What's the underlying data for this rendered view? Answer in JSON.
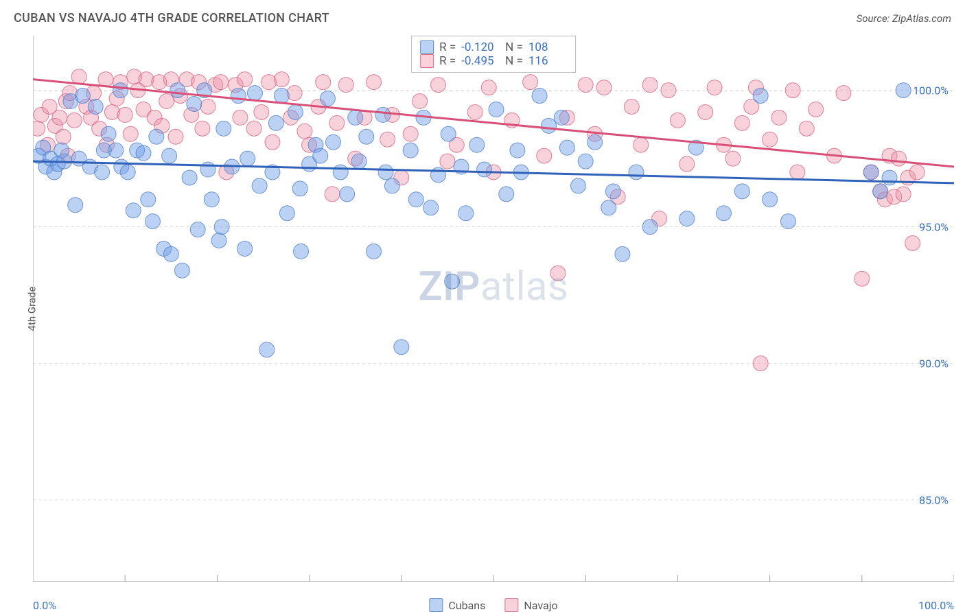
{
  "title": "CUBAN VS NAVAJO 4TH GRADE CORRELATION CHART",
  "source": "Source: ZipAtlas.com",
  "ylabel": "4th Grade",
  "watermark": {
    "prefix": "ZIP",
    "suffix": "atlas"
  },
  "chart": {
    "type": "scatter",
    "background_color": "#ffffff",
    "grid_color": "#d8d8d8",
    "axis_line_color": "#999999",
    "tick_color": "#a0a0a0",
    "xlim": [
      0,
      100
    ],
    "ylim": [
      82,
      102
    ],
    "xticks_minor_step": 10,
    "xtick_labels": {
      "min": "0.0%",
      "max": "100.0%"
    },
    "ytick_values": [
      85,
      90,
      95,
      100
    ],
    "ytick_labels": [
      "85.0%",
      "90.0%",
      "95.0%",
      "100.0%"
    ],
    "marker_radius": 11,
    "marker_opacity": 0.55,
    "line_width": 3,
    "label_fontsize": 16,
    "label_color": "#3b72c4"
  },
  "series": {
    "cubans": {
      "label": "Cubans",
      "color": "#6a9be8",
      "fill": "rgba(106,155,232,0.45)",
      "stroke": "rgba(83,128,200,0.8)",
      "trend_color": "#2f62b8",
      "R": "-0.120",
      "N": "108",
      "trend": {
        "y_at_x0": 97.4,
        "y_at_x100": 96.6
      },
      "points": [
        [
          0.6,
          97.6
        ],
        [
          1.1,
          97.9
        ],
        [
          1.4,
          97.2
        ],
        [
          1.9,
          97.5
        ],
        [
          2.3,
          97.0
        ],
        [
          2.7,
          97.3
        ],
        [
          3.1,
          97.8
        ],
        [
          3.4,
          97.4
        ],
        [
          4.1,
          99.6
        ],
        [
          4.6,
          95.8
        ],
        [
          5.0,
          97.5
        ],
        [
          5.4,
          99.8
        ],
        [
          6.2,
          97.2
        ],
        [
          6.8,
          99.4
        ],
        [
          7.5,
          97.0
        ],
        [
          7.7,
          97.8
        ],
        [
          8.2,
          98.4
        ],
        [
          9.0,
          97.8
        ],
        [
          9.6,
          97.2
        ],
        [
          10.3,
          97.0
        ],
        [
          9.5,
          100.0
        ],
        [
          10.9,
          95.6
        ],
        [
          11.3,
          97.8
        ],
        [
          12.0,
          97.7
        ],
        [
          12.5,
          96.0
        ],
        [
          13.0,
          95.2
        ],
        [
          13.4,
          98.3
        ],
        [
          14.2,
          94.2
        ],
        [
          14.8,
          97.6
        ],
        [
          15.0,
          94.0
        ],
        [
          15.7,
          100.0
        ],
        [
          16.2,
          93.4
        ],
        [
          17.0,
          96.8
        ],
        [
          17.5,
          99.5
        ],
        [
          17.9,
          94.9
        ],
        [
          18.6,
          100.0
        ],
        [
          19.0,
          97.1
        ],
        [
          19.4,
          96.0
        ],
        [
          20.2,
          94.5
        ],
        [
          20.7,
          98.6
        ],
        [
          20.5,
          95.0
        ],
        [
          21.6,
          97.2
        ],
        [
          22.3,
          99.8
        ],
        [
          23.0,
          94.2
        ],
        [
          23.3,
          97.5
        ],
        [
          24.1,
          99.9
        ],
        [
          24.6,
          96.5
        ],
        [
          25.4,
          90.5
        ],
        [
          26.0,
          97.0
        ],
        [
          26.4,
          98.8
        ],
        [
          27.0,
          99.8
        ],
        [
          27.6,
          95.5
        ],
        [
          28.5,
          99.2
        ],
        [
          29.0,
          96.4
        ],
        [
          29.1,
          94.1
        ],
        [
          30.0,
          97.3
        ],
        [
          30.7,
          98.0
        ],
        [
          31.2,
          97.6
        ],
        [
          32.0,
          99.7
        ],
        [
          32.6,
          98.1
        ],
        [
          33.4,
          97.0
        ],
        [
          34.1,
          96.2
        ],
        [
          35.0,
          99.0
        ],
        [
          35.4,
          97.4
        ],
        [
          36.2,
          98.3
        ],
        [
          37.0,
          94.1
        ],
        [
          38.0,
          99.1
        ],
        [
          38.3,
          97.0
        ],
        [
          39.0,
          96.5
        ],
        [
          40.0,
          90.6
        ],
        [
          41.0,
          97.8
        ],
        [
          41.6,
          96.0
        ],
        [
          42.4,
          99.0
        ],
        [
          43.2,
          95.7
        ],
        [
          44.0,
          96.9
        ],
        [
          45.1,
          98.4
        ],
        [
          45.5,
          93.0
        ],
        [
          46.5,
          97.2
        ],
        [
          47.0,
          95.5
        ],
        [
          48.2,
          98.0
        ],
        [
          49.0,
          97.1
        ],
        [
          50.3,
          99.3
        ],
        [
          51.4,
          96.2
        ],
        [
          52.6,
          97.8
        ],
        [
          53.0,
          97.0
        ],
        [
          55.0,
          99.8
        ],
        [
          56.0,
          98.7
        ],
        [
          57.4,
          99.0
        ],
        [
          58.0,
          97.9
        ],
        [
          59.2,
          96.5
        ],
        [
          60.0,
          97.4
        ],
        [
          61.0,
          98.1
        ],
        [
          62.5,
          95.7
        ],
        [
          63.0,
          96.3
        ],
        [
          64.0,
          94.0
        ],
        [
          65.5,
          97.0
        ],
        [
          67.0,
          95.0
        ],
        [
          71.0,
          95.3
        ],
        [
          72.0,
          97.9
        ],
        [
          75.0,
          95.5
        ],
        [
          77.0,
          96.3
        ],
        [
          79.0,
          99.8
        ],
        [
          80.0,
          96.0
        ],
        [
          82.0,
          95.2
        ],
        [
          91.0,
          97.0
        ],
        [
          92.0,
          96.3
        ],
        [
          93.0,
          96.8
        ],
        [
          94.5,
          100.0
        ]
      ]
    },
    "navajo": {
      "label": "Navajo",
      "color": "#ec8fa6",
      "fill": "rgba(236,143,166,0.40)",
      "stroke": "rgba(216,100,130,0.8)",
      "trend_color": "#d84f78",
      "R": "-0.495",
      "N": "116",
      "trend": {
        "y_at_x0": 100.4,
        "y_at_x100": 97.2
      },
      "points": [
        [
          0.5,
          98.6
        ],
        [
          0.9,
          99.1
        ],
        [
          1.6,
          98.0
        ],
        [
          1.8,
          99.4
        ],
        [
          2.4,
          98.7
        ],
        [
          2.9,
          99.0
        ],
        [
          3.3,
          98.3
        ],
        [
          3.6,
          99.6
        ],
        [
          4.0,
          99.9
        ],
        [
          4.5,
          98.9
        ],
        [
          5.0,
          100.5
        ],
        [
          3.8,
          97.6
        ],
        [
          5.8,
          99.4
        ],
        [
          6.3,
          99.0
        ],
        [
          6.6,
          99.9
        ],
        [
          7.2,
          98.6
        ],
        [
          7.9,
          100.4
        ],
        [
          8.0,
          98.0
        ],
        [
          8.6,
          99.2
        ],
        [
          9.1,
          99.7
        ],
        [
          9.5,
          100.3
        ],
        [
          10.0,
          99.1
        ],
        [
          10.6,
          98.4
        ],
        [
          11.0,
          100.5
        ],
        [
          11.4,
          100.0
        ],
        [
          12.0,
          99.3
        ],
        [
          12.3,
          100.4
        ],
        [
          13.2,
          99.0
        ],
        [
          13.7,
          100.3
        ],
        [
          14.0,
          98.7
        ],
        [
          14.5,
          99.6
        ],
        [
          15.0,
          100.4
        ],
        [
          15.5,
          98.3
        ],
        [
          16.0,
          99.8
        ],
        [
          16.7,
          100.4
        ],
        [
          17.2,
          99.1
        ],
        [
          18.0,
          100.3
        ],
        [
          18.4,
          98.6
        ],
        [
          19.0,
          99.4
        ],
        [
          19.8,
          100.2
        ],
        [
          20.4,
          100.3
        ],
        [
          21.0,
          97.0
        ],
        [
          22.0,
          100.2
        ],
        [
          22.5,
          99.0
        ],
        [
          23.0,
          100.4
        ],
        [
          24.0,
          98.6
        ],
        [
          24.8,
          99.2
        ],
        [
          25.6,
          100.3
        ],
        [
          26.0,
          98.1
        ],
        [
          27.0,
          100.4
        ],
        [
          28.0,
          99.0
        ],
        [
          28.4,
          99.9
        ],
        [
          29.5,
          98.5
        ],
        [
          30.0,
          98.0
        ],
        [
          31.0,
          99.4
        ],
        [
          31.5,
          100.3
        ],
        [
          32.5,
          96.2
        ],
        [
          33.0,
          98.8
        ],
        [
          34.0,
          100.2
        ],
        [
          35.0,
          97.5
        ],
        [
          36.0,
          99.0
        ],
        [
          37.0,
          100.3
        ],
        [
          38.5,
          98.2
        ],
        [
          39.0,
          99.1
        ],
        [
          40.0,
          96.8
        ],
        [
          41.0,
          98.4
        ],
        [
          42.0,
          99.6
        ],
        [
          44.0,
          100.2
        ],
        [
          45.0,
          97.4
        ],
        [
          46.0,
          98.0
        ],
        [
          48.0,
          99.2
        ],
        [
          49.5,
          100.1
        ],
        [
          50.0,
          97.0
        ],
        [
          52.0,
          98.9
        ],
        [
          54.0,
          100.3
        ],
        [
          55.5,
          97.6
        ],
        [
          57.0,
          93.3
        ],
        [
          58.0,
          99.0
        ],
        [
          60.0,
          100.2
        ],
        [
          61.0,
          98.4
        ],
        [
          62.0,
          100.1
        ],
        [
          63.5,
          96.1
        ],
        [
          65.0,
          99.4
        ],
        [
          66.0,
          98.0
        ],
        [
          67.0,
          100.2
        ],
        [
          68.0,
          95.3
        ],
        [
          69.0,
          100.0
        ],
        [
          70.0,
          98.9
        ],
        [
          71.0,
          97.3
        ],
        [
          73.0,
          99.2
        ],
        [
          74.0,
          100.1
        ],
        [
          75.0,
          98.0
        ],
        [
          76.0,
          97.5
        ],
        [
          77.0,
          98.8
        ],
        [
          78.0,
          99.4
        ],
        [
          78.5,
          100.1
        ],
        [
          79.0,
          90.0
        ],
        [
          80.0,
          98.2
        ],
        [
          81.0,
          99.0
        ],
        [
          82.5,
          100.0
        ],
        [
          83.0,
          97.0
        ],
        [
          84.0,
          98.6
        ],
        [
          85.0,
          99.3
        ],
        [
          87.0,
          97.6
        ],
        [
          88.0,
          99.9
        ],
        [
          90.0,
          93.1
        ],
        [
          91.0,
          97.0
        ],
        [
          92.0,
          96.3
        ],
        [
          92.5,
          96.0
        ],
        [
          93.0,
          97.6
        ],
        [
          93.5,
          96.1
        ],
        [
          94.0,
          97.5
        ],
        [
          94.5,
          96.2
        ],
        [
          95.0,
          96.8
        ],
        [
          95.5,
          94.4
        ],
        [
          96.0,
          97.0
        ]
      ]
    }
  },
  "legend": {
    "swatches": [
      {
        "label": "Cubans",
        "fill": "rgba(106,155,232,0.45)",
        "border": "rgba(83,128,200,0.9)"
      },
      {
        "label": "Navajo",
        "fill": "rgba(236,143,166,0.40)",
        "border": "rgba(216,100,130,0.9)"
      }
    ]
  }
}
